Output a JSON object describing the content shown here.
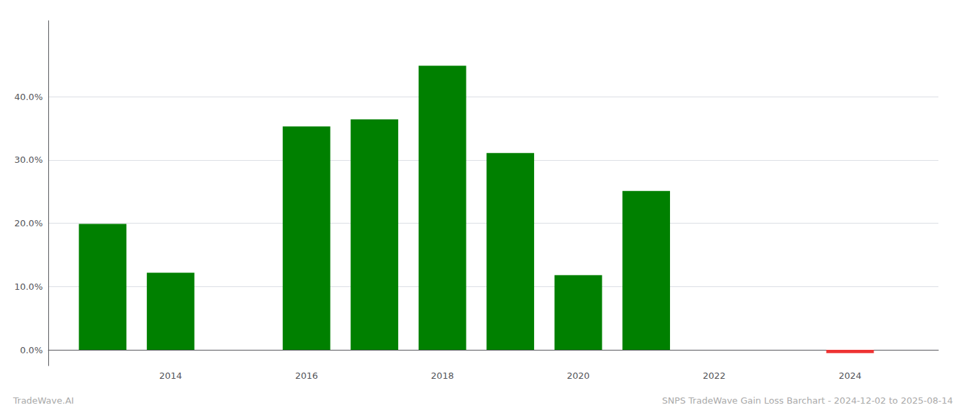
{
  "chart_data": {
    "type": "bar",
    "title": "SNPS TradeWave Gain Loss Barchart - 2024-12-02 to 2025-08-14",
    "annotations": [
      "TradeWave.AI"
    ],
    "x": [
      2013,
      2014,
      2016,
      2017,
      2018,
      2019,
      2020,
      2021,
      2022,
      2024
    ],
    "values": [
      0.199,
      0.122,
      0.353,
      0.364,
      0.449,
      0.311,
      0.118,
      0.251,
      0.0,
      -0.005
    ],
    "colors": [
      "#008000",
      "#008000",
      "#008000",
      "#008000",
      "#008000",
      "#008000",
      "#008000",
      "#008000",
      "#008000",
      "#ee3333"
    ],
    "xlim": [
      2012.2,
      2025.3
    ],
    "xticks": [
      2014,
      2016,
      2018,
      2020,
      2022,
      2024
    ],
    "ylim": [
      -0.025,
      0.52
    ],
    "yticks": [
      {
        "value": 0.0,
        "label": "0.0%"
      },
      {
        "value": 0.1,
        "label": "10.0%"
      },
      {
        "value": 0.2,
        "label": "20.0%"
      },
      {
        "value": 0.3,
        "label": "30.0%"
      },
      {
        "value": 0.4,
        "label": "40.0%"
      }
    ],
    "grid": true
  }
}
